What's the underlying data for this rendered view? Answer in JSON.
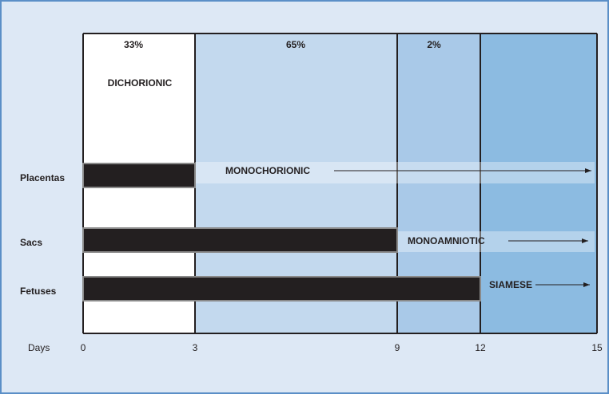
{
  "chart_data": {
    "type": "bar",
    "orientation": "horizontal",
    "categories": [
      "Placentas",
      "Sacs",
      "Fetuses"
    ],
    "values": [
      3,
      9,
      12
    ],
    "color": "#231f20",
    "xlabel": "Days",
    "xlim": [
      0,
      15
    ],
    "xticks": [
      0,
      3,
      9,
      12,
      15
    ],
    "region_colors": [
      "#ffffff",
      "#c3d9ee",
      "#a9c9e8",
      "#8cbbe1"
    ],
    "region_percents": [
      {
        "value": 33,
        "label": "33%"
      },
      {
        "value": 65,
        "label": "65%"
      },
      {
        "value": 2,
        "label": "2%"
      }
    ],
    "annotations": [
      "DICHORIONIC",
      "MONOCHORIONIC",
      "MONOAMNIOTIC",
      "SIAMESE"
    ]
  }
}
